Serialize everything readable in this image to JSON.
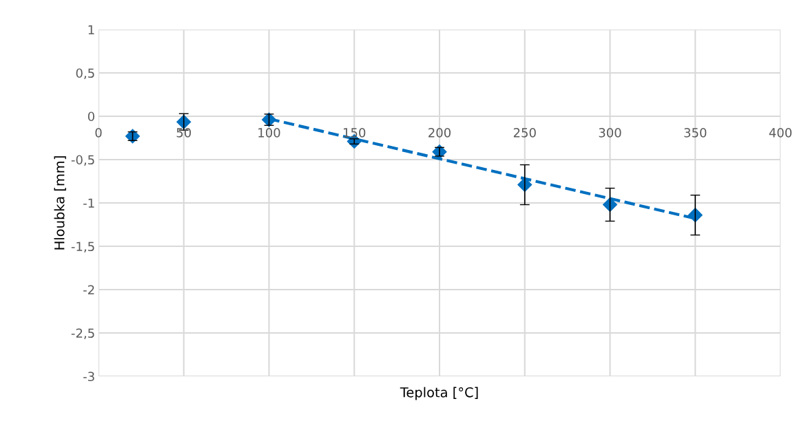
{
  "chart_data": {
    "type": "scatter",
    "xlabel": "Teplota [°C]",
    "ylabel": "Hloubka [mm]",
    "marker": "diamond",
    "grid": true,
    "legend": false,
    "xlim": [
      0,
      400
    ],
    "xticks": [
      0,
      50,
      100,
      150,
      200,
      250,
      300,
      350,
      400
    ],
    "ylim": [
      -3,
      1
    ],
    "yticks": [
      {
        "value": 1,
        "label": "1"
      },
      {
        "value": 0.5,
        "label": "0,5"
      },
      {
        "value": 0,
        "label": "0"
      },
      {
        "value": -0.5,
        "label": "-0,5"
      },
      {
        "value": -1,
        "label": "-1"
      },
      {
        "value": -1.5,
        "label": "-1,5"
      },
      {
        "value": -2,
        "label": "-2"
      },
      {
        "value": -2.5,
        "label": "-2,5"
      },
      {
        "value": -3,
        "label": "-3"
      }
    ],
    "series": [
      {
        "color": "#0070c0",
        "x": [
          20,
          50,
          100,
          150,
          200,
          250,
          300,
          350
        ],
        "values": [
          -0.23,
          -0.065,
          -0.04,
          -0.29,
          -0.41,
          -0.79,
          -1.02,
          -1.14
        ],
        "errors": [
          0.05,
          0.095,
          0.065,
          0.03,
          0.05,
          0.23,
          0.19,
          0.23
        ]
      },
      {
        "type": "line",
        "color": "#0070c0",
        "line_style": "dashed",
        "marker": "none",
        "x": [
          100,
          350
        ],
        "values": [
          -0.03,
          -1.18
        ]
      }
    ]
  }
}
